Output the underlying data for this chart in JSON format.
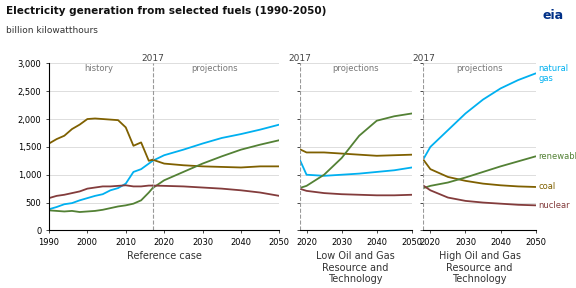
{
  "title": "Electricity generation from selected fuels (1990-2050)",
  "subtitle": "billion kilowatthours",
  "colors": {
    "natural_gas": "#00b0f0",
    "coal": "#7f6000",
    "renewables": "#538135",
    "nuclear": "#833c3c"
  },
  "panel1": {
    "natural_gas": {
      "x_hist": [
        1990,
        1992,
        1994,
        1996,
        1998,
        2000,
        2002,
        2004,
        2006,
        2008,
        2010,
        2012,
        2014,
        2016,
        2017
      ],
      "y_hist": [
        380,
        420,
        470,
        490,
        540,
        580,
        620,
        650,
        720,
        760,
        840,
        1050,
        1100,
        1200,
        1250
      ],
      "x_proj": [
        2017,
        2020,
        2025,
        2030,
        2035,
        2040,
        2045,
        2050
      ],
      "y_proj": [
        1250,
        1350,
        1450,
        1560,
        1660,
        1730,
        1810,
        1900
      ]
    },
    "coal": {
      "x_hist": [
        1990,
        1992,
        1994,
        1996,
        1998,
        2000,
        2002,
        2004,
        2006,
        2008,
        2010,
        2012,
        2014,
        2016,
        2017
      ],
      "y_hist": [
        1560,
        1640,
        1700,
        1820,
        1900,
        2000,
        2010,
        2000,
        1990,
        1980,
        1850,
        1520,
        1580,
        1250,
        1270
      ],
      "x_proj": [
        2017,
        2020,
        2025,
        2030,
        2035,
        2040,
        2045,
        2050
      ],
      "y_proj": [
        1270,
        1200,
        1170,
        1150,
        1140,
        1130,
        1150,
        1150
      ]
    },
    "renewables": {
      "x_hist": [
        1990,
        1992,
        1994,
        1996,
        1998,
        2000,
        2002,
        2004,
        2006,
        2008,
        2010,
        2012,
        2014,
        2016,
        2017
      ],
      "y_hist": [
        360,
        350,
        340,
        350,
        330,
        340,
        350,
        370,
        400,
        430,
        450,
        480,
        540,
        680,
        760
      ],
      "x_proj": [
        2017,
        2020,
        2025,
        2030,
        2035,
        2040,
        2045,
        2050
      ],
      "y_proj": [
        760,
        900,
        1050,
        1200,
        1330,
        1450,
        1540,
        1620
      ]
    },
    "nuclear": {
      "x_hist": [
        1990,
        1992,
        1994,
        1996,
        1998,
        2000,
        2002,
        2004,
        2006,
        2008,
        2010,
        2012,
        2014,
        2016,
        2017
      ],
      "y_hist": [
        580,
        620,
        640,
        670,
        700,
        750,
        770,
        790,
        790,
        800,
        810,
        790,
        790,
        805,
        805
      ],
      "x_proj": [
        2017,
        2020,
        2025,
        2030,
        2035,
        2040,
        2045,
        2050
      ],
      "y_proj": [
        805,
        800,
        790,
        770,
        750,
        720,
        680,
        620
      ]
    }
  },
  "panel2": {
    "natural_gas": {
      "x": [
        2018,
        2020,
        2025,
        2030,
        2035,
        2040,
        2045,
        2050
      ],
      "y": [
        1280,
        1000,
        980,
        1000,
        1020,
        1050,
        1080,
        1130
      ]
    },
    "coal": {
      "x": [
        2018,
        2020,
        2025,
        2030,
        2035,
        2040,
        2045,
        2050
      ],
      "y": [
        1460,
        1400,
        1400,
        1380,
        1360,
        1340,
        1350,
        1360
      ]
    },
    "renewables": {
      "x": [
        2018,
        2020,
        2025,
        2030,
        2035,
        2040,
        2045,
        2050
      ],
      "y": [
        760,
        800,
        1000,
        1300,
        1700,
        1970,
        2050,
        2100
      ]
    },
    "nuclear": {
      "x": [
        2018,
        2020,
        2025,
        2030,
        2035,
        2040,
        2045,
        2050
      ],
      "y": [
        750,
        710,
        670,
        650,
        640,
        630,
        630,
        640
      ]
    }
  },
  "panel3": {
    "natural_gas": {
      "x": [
        2018,
        2020,
        2025,
        2030,
        2035,
        2040,
        2045,
        2050
      ],
      "y": [
        1280,
        1500,
        1800,
        2100,
        2350,
        2550,
        2700,
        2820
      ]
    },
    "coal": {
      "x": [
        2018,
        2020,
        2025,
        2030,
        2035,
        2040,
        2045,
        2050
      ],
      "y": [
        1270,
        1100,
        960,
        890,
        840,
        810,
        790,
        780
      ]
    },
    "renewables": {
      "x": [
        2018,
        2020,
        2025,
        2030,
        2035,
        2040,
        2045,
        2050
      ],
      "y": [
        760,
        800,
        860,
        950,
        1050,
        1150,
        1240,
        1330
      ]
    },
    "nuclear": {
      "x": [
        2018,
        2020,
        2025,
        2030,
        2035,
        2040,
        2045,
        2050
      ],
      "y": [
        805,
        720,
        590,
        530,
        500,
        480,
        460,
        450
      ]
    }
  },
  "yticks": [
    0,
    500,
    1000,
    1500,
    2000,
    2500,
    3000
  ],
  "ytick_labels": [
    "0",
    "500",
    "1,000",
    "1,500",
    "2,000",
    "2,500",
    "3,000"
  ]
}
